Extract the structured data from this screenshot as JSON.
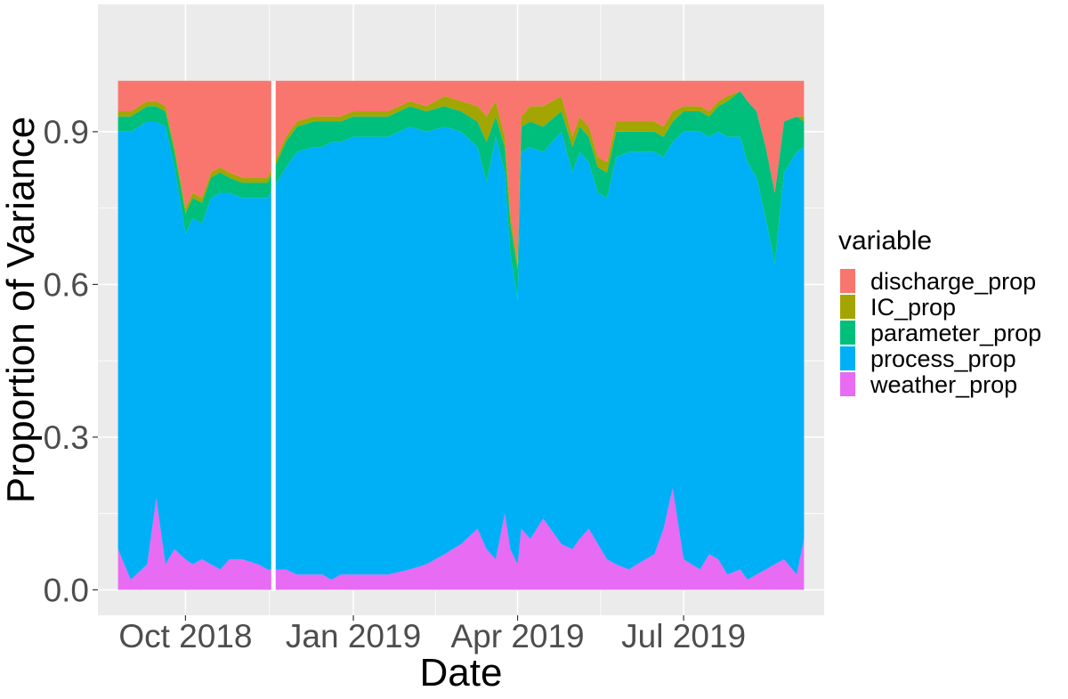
{
  "chart_data": {
    "type": "area",
    "stacked": true,
    "xlabel": "Date",
    "ylabel": "Proportion of Variance",
    "x_range": [
      "2018-08-14",
      "2019-09-16"
    ],
    "ylim": [
      -0.05,
      1.15
    ],
    "y_ticks": [
      0.0,
      0.3,
      0.6,
      0.9
    ],
    "y_tick_labels": [
      "0.0",
      "0.3",
      "0.6",
      "0.9"
    ],
    "x_ticks": [
      "2018-10-01",
      "2019-01-01",
      "2019-04-01",
      "2019-07-01"
    ],
    "x_tick_labels": [
      "Oct 2018",
      "Jan 2019",
      "Apr 2019",
      "Jul 2019"
    ],
    "grid": true,
    "legend": {
      "title": "variable",
      "position": "right"
    },
    "stack_order_bottom_to_top": [
      "weather_prop",
      "process_prop",
      "parameter_prop",
      "IC_prop",
      "discharge_prop"
    ],
    "legend_order": [
      "discharge_prop",
      "IC_prop",
      "parameter_prop",
      "process_prop",
      "weather_prop"
    ],
    "colors": {
      "discharge_prop": "#F8766D",
      "IC_prop": "#A3A500",
      "parameter_prop": "#00BF7D",
      "process_prop": "#00B0F6",
      "weather_prop": "#E76BF3"
    },
    "x": [
      "2018-08-25",
      "2018-09-01",
      "2018-09-10",
      "2018-09-15",
      "2018-09-20",
      "2018-09-25",
      "2018-10-01",
      "2018-10-05",
      "2018-10-10",
      "2018-10-15",
      "2018-10-20",
      "2018-10-25",
      "2018-11-01",
      "2018-11-10",
      "2018-11-15",
      "2018-11-20",
      "2018-11-25",
      "2018-12-01",
      "2018-12-10",
      "2018-12-15",
      "2018-12-20",
      "2018-12-25",
      "2019-01-01",
      "2019-01-10",
      "2019-01-20",
      "2019-02-01",
      "2019-02-10",
      "2019-02-20",
      "2019-03-01",
      "2019-03-10",
      "2019-03-15",
      "2019-03-20",
      "2019-03-25",
      "2019-03-28",
      "2019-04-01",
      "2019-04-03",
      "2019-04-08",
      "2019-04-15",
      "2019-04-25",
      "2019-05-01",
      "2019-05-05",
      "2019-05-10",
      "2019-05-15",
      "2019-05-20",
      "2019-05-25",
      "2019-06-01",
      "2019-06-10",
      "2019-06-15",
      "2019-06-20",
      "2019-06-25",
      "2019-07-01",
      "2019-07-10",
      "2019-07-15",
      "2019-07-20",
      "2019-07-25",
      "2019-08-01",
      "2019-08-05",
      "2019-08-10",
      "2019-08-15",
      "2019-08-20",
      "2019-08-25",
      "2019-09-01",
      "2019-09-05"
    ],
    "series": [
      {
        "name": "weather_prop",
        "values": [
          0.08,
          0.02,
          0.05,
          0.18,
          0.05,
          0.08,
          0.06,
          0.05,
          0.06,
          0.05,
          0.04,
          0.06,
          0.06,
          0.05,
          0.04,
          0.04,
          0.04,
          0.03,
          0.03,
          0.03,
          0.02,
          0.03,
          0.03,
          0.03,
          0.03,
          0.04,
          0.05,
          0.07,
          0.09,
          0.12,
          0.08,
          0.06,
          0.15,
          0.08,
          0.05,
          0.12,
          0.1,
          0.14,
          0.09,
          0.08,
          0.1,
          0.12,
          0.09,
          0.06,
          0.05,
          0.04,
          0.06,
          0.07,
          0.12,
          0.2,
          0.06,
          0.04,
          0.07,
          0.06,
          0.03,
          0.04,
          0.02,
          0.03,
          0.04,
          0.05,
          0.06,
          0.03,
          0.1
        ]
      },
      {
        "name": "process_prop",
        "values": [
          0.82,
          0.88,
          0.87,
          0.74,
          0.86,
          0.75,
          0.64,
          0.68,
          0.66,
          0.72,
          0.74,
          0.72,
          0.71,
          0.72,
          0.73,
          0.76,
          0.79,
          0.83,
          0.84,
          0.84,
          0.86,
          0.85,
          0.86,
          0.86,
          0.86,
          0.87,
          0.85,
          0.84,
          0.81,
          0.75,
          0.72,
          0.83,
          0.67,
          0.58,
          0.52,
          0.74,
          0.77,
          0.72,
          0.81,
          0.74,
          0.76,
          0.72,
          0.69,
          0.71,
          0.8,
          0.82,
          0.8,
          0.79,
          0.73,
          0.68,
          0.84,
          0.86,
          0.82,
          0.84,
          0.86,
          0.85,
          0.82,
          0.78,
          0.69,
          0.59,
          0.76,
          0.83,
          0.77
        ]
      },
      {
        "name": "parameter_prop",
        "values": [
          0.03,
          0.03,
          0.03,
          0.03,
          0.03,
          0.03,
          0.04,
          0.04,
          0.04,
          0.04,
          0.04,
          0.03,
          0.03,
          0.03,
          0.03,
          0.04,
          0.05,
          0.05,
          0.05,
          0.05,
          0.04,
          0.04,
          0.04,
          0.04,
          0.04,
          0.04,
          0.04,
          0.04,
          0.04,
          0.05,
          0.08,
          0.04,
          0.05,
          0.06,
          0.06,
          0.05,
          0.05,
          0.05,
          0.04,
          0.05,
          0.05,
          0.05,
          0.05,
          0.05,
          0.05,
          0.04,
          0.04,
          0.04,
          0.04,
          0.04,
          0.04,
          0.04,
          0.04,
          0.05,
          0.07,
          0.09,
          0.12,
          0.13,
          0.14,
          0.14,
          0.1,
          0.07,
          0.05
        ]
      },
      {
        "name": "IC_prop",
        "values": [
          0.01,
          0.01,
          0.01,
          0.01,
          0.01,
          0.01,
          0.01,
          0.01,
          0.01,
          0.01,
          0.01,
          0.01,
          0.01,
          0.01,
          0.01,
          0.01,
          0.01,
          0.01,
          0.01,
          0.01,
          0.01,
          0.01,
          0.01,
          0.01,
          0.01,
          0.01,
          0.01,
          0.02,
          0.02,
          0.03,
          0.05,
          0.03,
          0.02,
          0.02,
          0.01,
          0.02,
          0.03,
          0.04,
          0.03,
          0.02,
          0.02,
          0.02,
          0.02,
          0.02,
          0.02,
          0.02,
          0.02,
          0.02,
          0.02,
          0.02,
          0.01,
          0.01,
          0.01,
          0.01,
          0.01,
          0.0,
          0.0,
          0.0,
          0.0,
          0.0,
          0.0,
          0.0,
          0.01
        ]
      },
      {
        "name": "discharge_prop",
        "values": [
          0.06,
          0.06,
          0.04,
          0.04,
          0.05,
          0.13,
          0.25,
          0.22,
          0.23,
          0.18,
          0.17,
          0.18,
          0.19,
          0.19,
          0.19,
          0.15,
          0.11,
          0.08,
          0.07,
          0.07,
          0.07,
          0.07,
          0.06,
          0.06,
          0.06,
          0.04,
          0.05,
          0.03,
          0.04,
          0.05,
          0.07,
          0.04,
          0.11,
          0.26,
          0.36,
          0.07,
          0.05,
          0.05,
          0.03,
          0.11,
          0.07,
          0.09,
          0.15,
          0.16,
          0.08,
          0.08,
          0.08,
          0.08,
          0.09,
          0.06,
          0.05,
          0.05,
          0.06,
          0.04,
          0.03,
          0.02,
          0.04,
          0.06,
          0.13,
          0.22,
          0.08,
          0.07,
          0.07
        ]
      }
    ],
    "gap": {
      "from": "2018-11-17",
      "to": "2018-11-19"
    },
    "area_range": {
      "from": "2018-08-25",
      "to": "2019-09-05"
    }
  }
}
